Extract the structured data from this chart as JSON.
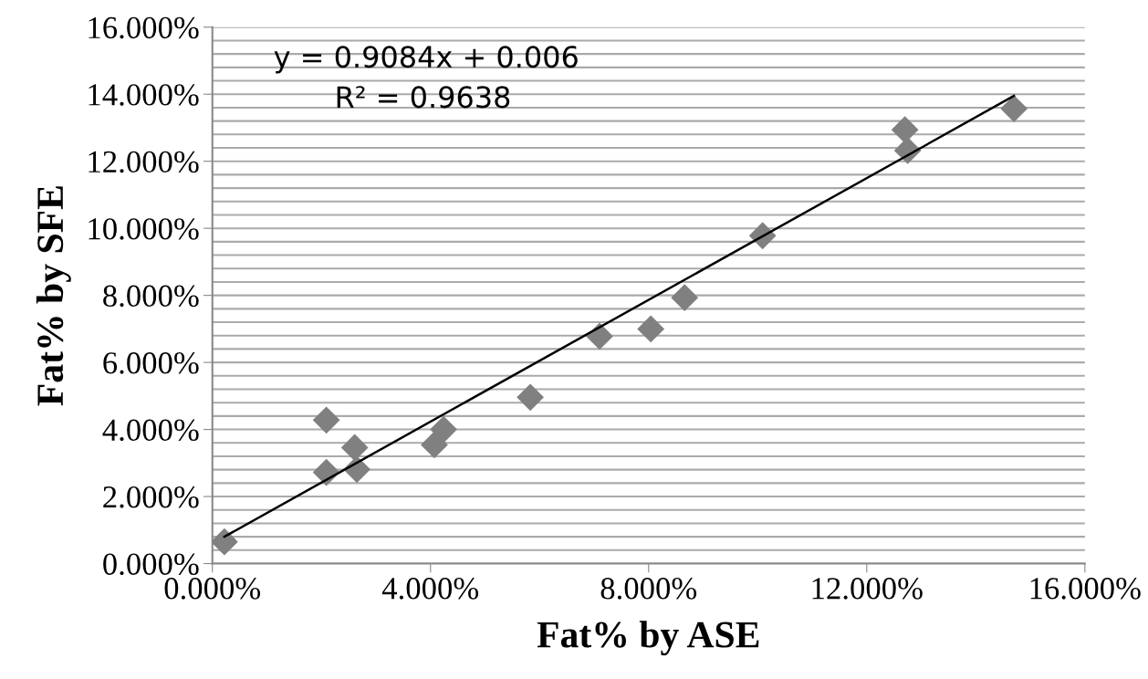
{
  "chart_data": {
    "type": "scatter",
    "xlabel": "Fat% by ASE",
    "ylabel": "Fat% by SFE",
    "annotations": [
      "y = 0.9084x + 0.006",
      "R² = 0.9638"
    ],
    "series": [
      {
        "color": "#808080",
        "marker": "diamond",
        "x": [
          0.22,
          2.09,
          2.09,
          2.61,
          2.65,
          4.07,
          4.24,
          5.83,
          7.1,
          8.04,
          8.66,
          10.09,
          12.7,
          12.75,
          14.7
        ],
        "values": [
          0.65,
          4.28,
          2.72,
          3.46,
          2.81,
          3.54,
          4.0,
          4.96,
          6.78,
          7.0,
          7.93,
          9.78,
          12.94,
          12.32,
          13.57
        ]
      },
      {
        "type": "line",
        "color": "#000000",
        "marker": "none",
        "x": [
          0.22,
          14.7
        ],
        "values": [
          0.8,
          13.95
        ]
      }
    ],
    "xlim": [
      0,
      16
    ],
    "ylim": [
      0,
      16
    ],
    "xticks": [
      {
        "value": 0,
        "label": "0.000%"
      },
      {
        "value": 4,
        "label": "4.000%"
      },
      {
        "value": 8,
        "label": "8.000%"
      },
      {
        "value": 12,
        "label": "12.000%"
      },
      {
        "value": 16,
        "label": "16.000%"
      }
    ],
    "yticks": [
      {
        "value": 0,
        "label": "0.000%"
      },
      {
        "value": 0.4,
        "label": null
      },
      {
        "value": 0.8,
        "label": null
      },
      {
        "value": 1.2,
        "label": null
      },
      {
        "value": 1.6,
        "label": null
      },
      {
        "value": 2,
        "label": "2.000%"
      },
      {
        "value": 2.4,
        "label": null
      },
      {
        "value": 2.8,
        "label": null
      },
      {
        "value": 3.2,
        "label": null
      },
      {
        "value": 3.6,
        "label": null
      },
      {
        "value": 4,
        "label": "4.000%"
      },
      {
        "value": 4.4,
        "label": null
      },
      {
        "value": 4.8,
        "label": null
      },
      {
        "value": 5.2,
        "label": null
      },
      {
        "value": 5.6,
        "label": null
      },
      {
        "value": 6,
        "label": "6.000%"
      },
      {
        "value": 6.4,
        "label": null
      },
      {
        "value": 6.8,
        "label": null
      },
      {
        "value": 7.2,
        "label": null
      },
      {
        "value": 7.6,
        "label": null
      },
      {
        "value": 8,
        "label": "8.000%"
      },
      {
        "value": 8.4,
        "label": null
      },
      {
        "value": 8.8,
        "label": null
      },
      {
        "value": 9.2,
        "label": null
      },
      {
        "value": 9.6,
        "label": null
      },
      {
        "value": 10,
        "label": "10.000%"
      },
      {
        "value": 10.4,
        "label": null
      },
      {
        "value": 10.8,
        "label": null
      },
      {
        "value": 11.2,
        "label": null
      },
      {
        "value": 11.6,
        "label": null
      },
      {
        "value": 12,
        "label": "12.000%"
      },
      {
        "value": 12.4,
        "label": null
      },
      {
        "value": 12.8,
        "label": null
      },
      {
        "value": 13.2,
        "label": null
      },
      {
        "value": 13.6,
        "label": null
      },
      {
        "value": 14,
        "label": "14.000%"
      },
      {
        "value": 14.4,
        "label": null
      },
      {
        "value": 14.8,
        "label": null
      },
      {
        "value": 15.2,
        "label": null
      },
      {
        "value": 15.6,
        "label": null
      },
      {
        "value": 16,
        "label": "16.000%"
      }
    ],
    "grid": "y",
    "legend": false
  }
}
